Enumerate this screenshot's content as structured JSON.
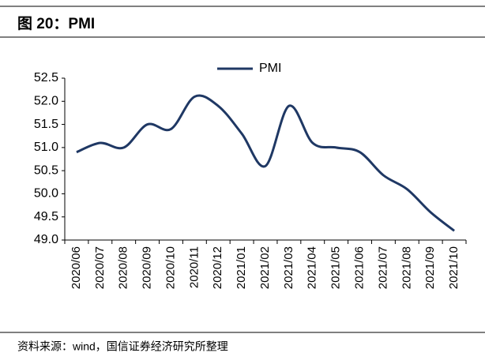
{
  "header": {
    "title": "图 20：PMI"
  },
  "chart_data": {
    "type": "line",
    "categories": [
      "2020/06",
      "2020/07",
      "2020/08",
      "2020/09",
      "2020/10",
      "2020/11",
      "2020/12",
      "2021/01",
      "2021/02",
      "2021/03",
      "2021/04",
      "2021/05",
      "2021/06",
      "2021/07",
      "2021/08",
      "2021/09",
      "2021/10"
    ],
    "series": [
      {
        "name": "PMI",
        "color": "#1f3864",
        "values": [
          50.9,
          51.1,
          51.0,
          51.5,
          51.4,
          52.1,
          51.9,
          51.3,
          50.6,
          51.9,
          51.1,
          51.0,
          50.9,
          50.4,
          50.1,
          49.6,
          49.2
        ]
      }
    ],
    "ylim": [
      49,
      52.5
    ],
    "yticks": [
      {
        "value": 49,
        "label": "49.0"
      },
      49.5,
      {
        "value": 50,
        "label": "50.0"
      },
      50.5,
      {
        "value": 51,
        "label": "51.0"
      },
      51.5,
      {
        "value": 52,
        "label": "52.0"
      },
      52.5
    ],
    "legend": "top"
  },
  "footer": {
    "source": "资料来源：wind，国信证券经济研究所整理"
  }
}
